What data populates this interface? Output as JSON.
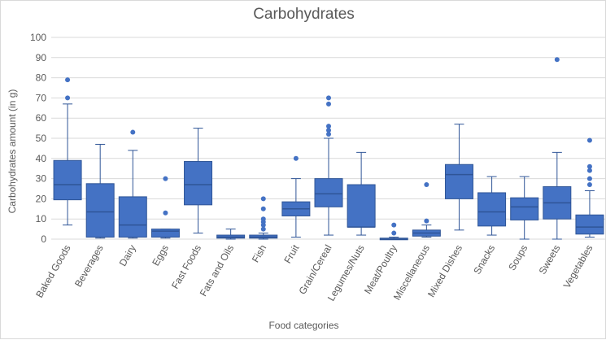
{
  "chart_data": {
    "type": "box",
    "title": "Carbohydrates",
    "xlabel": "Food categories",
    "ylabel": "Carbohydrates amount (in g)",
    "ylim": [
      0,
      100
    ],
    "yticks": [
      0,
      10,
      20,
      30,
      40,
      50,
      60,
      70,
      80,
      90,
      100
    ],
    "grid": true,
    "colors": {
      "box": "#4472c4",
      "box_edge": "#2f5597",
      "grid": "#d9d9d9",
      "text": "#595959"
    },
    "categories": [
      "Baked Goods",
      "Beverages",
      "Dairy",
      "Eggs",
      "Fast Foods",
      "Fats and Oils",
      "Fish",
      "Fruit",
      "Grain/Cereal",
      "Legumes/Nuts",
      "Meat/Poultry",
      "Miscellaneous",
      "Mixed Dishes",
      "Snacks",
      "Soups",
      "Sweets",
      "Vegetables"
    ],
    "boxes": [
      {
        "min": 7,
        "q1": 19.5,
        "median": 27,
        "q3": 39,
        "max": 67,
        "outliers": [
          70,
          79
        ]
      },
      {
        "min": 0.5,
        "q1": 1,
        "median": 13.5,
        "q3": 27.5,
        "max": 47,
        "outliers": []
      },
      {
        "min": 0.5,
        "q1": 1,
        "median": 7,
        "q3": 21,
        "max": 44,
        "outliers": [
          53
        ]
      },
      {
        "min": 0.5,
        "q1": 1,
        "median": 4,
        "q3": 5,
        "max": 5,
        "outliers": [
          13,
          30
        ]
      },
      {
        "min": 3,
        "q1": 17,
        "median": 27,
        "q3": 38.5,
        "max": 55,
        "outliers": []
      },
      {
        "min": 0,
        "q1": 0.5,
        "median": 1,
        "q3": 2,
        "max": 5,
        "outliers": []
      },
      {
        "min": 0,
        "q1": 0.5,
        "median": 1,
        "q3": 2,
        "max": 3,
        "outliers": [
          5,
          7,
          8.5,
          10,
          15,
          20
        ]
      },
      {
        "min": 1,
        "q1": 11.5,
        "median": 15,
        "q3": 18.5,
        "max": 30,
        "outliers": [
          40
        ]
      },
      {
        "min": 2,
        "q1": 16,
        "median": 22.5,
        "q3": 30,
        "max": 50,
        "outliers": [
          52,
          54,
          56,
          67,
          70
        ]
      },
      {
        "min": 2,
        "q1": 6,
        "median": 6,
        "q3": 27,
        "max": 43,
        "outliers": []
      },
      {
        "min": 0,
        "q1": 0,
        "median": 0,
        "q3": 0.5,
        "max": 1,
        "outliers": [
          3,
          7
        ]
      },
      {
        "min": 1,
        "q1": 1.5,
        "median": 3,
        "q3": 4.5,
        "max": 7,
        "outliers": [
          9,
          27
        ]
      },
      {
        "min": 4.5,
        "q1": 20,
        "median": 32,
        "q3": 37,
        "max": 57,
        "outliers": []
      },
      {
        "min": 2,
        "q1": 6.5,
        "median": 13.5,
        "q3": 23,
        "max": 31,
        "outliers": []
      },
      {
        "min": 0,
        "q1": 9.5,
        "median": 16,
        "q3": 20.5,
        "max": 31,
        "outliers": []
      },
      {
        "min": 0,
        "q1": 10,
        "median": 18,
        "q3": 26,
        "max": 43,
        "outliers": [
          89
        ]
      },
      {
        "min": 1,
        "q1": 2.5,
        "median": 6,
        "q3": 12,
        "max": 24,
        "outliers": [
          27,
          30,
          34,
          36,
          49
        ]
      }
    ]
  }
}
